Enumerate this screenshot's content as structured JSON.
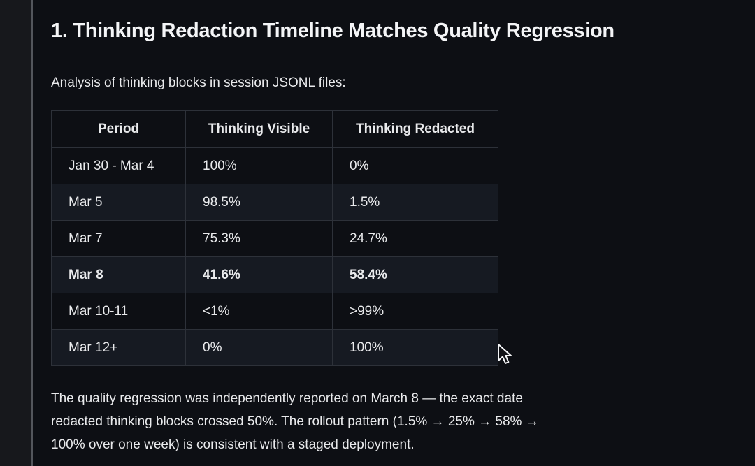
{
  "page": {
    "heading": "1. Thinking Redaction Timeline Matches Quality Regression",
    "intro": "Analysis of thinking blocks in session JSONL files:",
    "table": {
      "columns": [
        "Period",
        "Thinking Visible",
        "Thinking Redacted"
      ],
      "rows": [
        {
          "period": "Jan 30 - Mar 4",
          "visible": "100%",
          "redacted": "0%",
          "bold": false
        },
        {
          "period": "Mar 5",
          "visible": "98.5%",
          "redacted": "1.5%",
          "bold": false
        },
        {
          "period": "Mar 7",
          "visible": "75.3%",
          "redacted": "24.7%",
          "bold": false
        },
        {
          "period": "Mar 8",
          "visible": "41.6%",
          "redacted": "58.4%",
          "bold": true
        },
        {
          "period": "Mar 10-11",
          "visible": "<1%",
          "redacted": ">99%",
          "bold": false
        },
        {
          "period": "Mar 12+",
          "visible": "0%",
          "redacted": "100%",
          "bold": false
        }
      ]
    },
    "closing_paragraph": "The quality regression was independently reported on March 8 — the exact date\nredacted thinking blocks crossed 50%. The rollout pattern (1.5% → 25% → 58% →\n100% over one week) is consistent with a staged deployment."
  },
  "colors": {
    "bg": "#0d0f14",
    "panel": "#17181c",
    "divider": "#53565c",
    "border": "#2d3139",
    "stripe": "#161a22",
    "rule": "#262b33",
    "text": "#e9eaec",
    "heading": "#f4f5f7"
  }
}
